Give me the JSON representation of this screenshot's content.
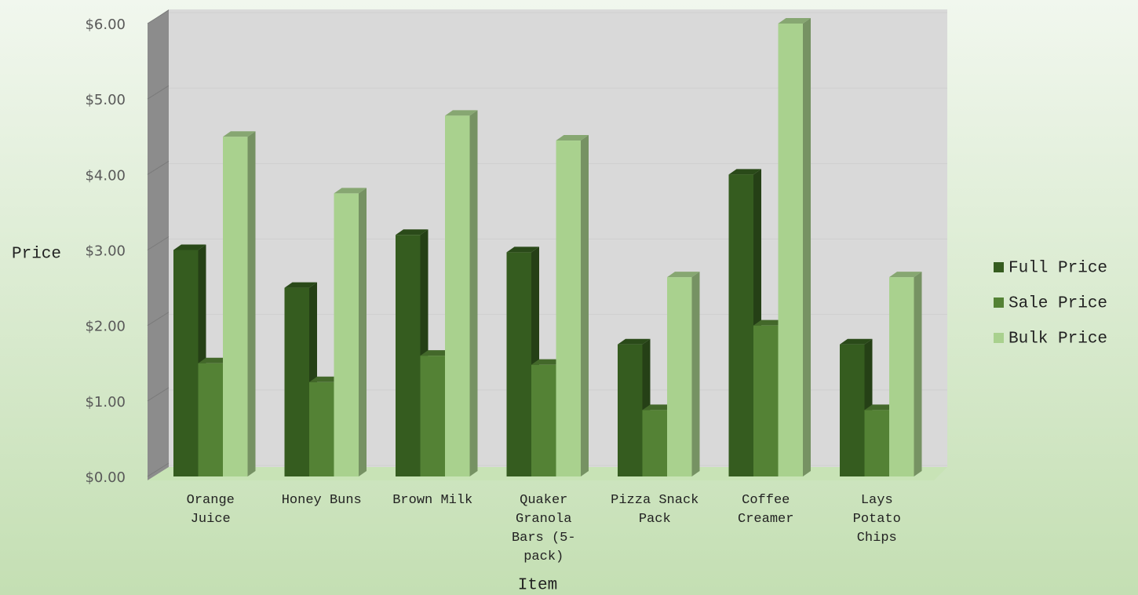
{
  "chart_data": {
    "type": "bar3d",
    "x_label": "Item",
    "y_label": "Price",
    "categories": [
      "Orange Juice",
      "Honey Buns",
      "Brown Milk",
      "Quaker Granola Bars (5-pack)",
      "Pizza Snack Pack",
      "Coffee Creamer",
      "Lays Potato Chips"
    ],
    "series": [
      {
        "name": "Full Price",
        "color": "#355c1f",
        "values": [
          3.0,
          2.5,
          3.2,
          2.97,
          1.75,
          4.0,
          1.75
        ]
      },
      {
        "name": "Sale Price",
        "color": "#548235",
        "values": [
          1.5,
          1.25,
          1.6,
          1.48,
          0.88,
          2.0,
          0.88
        ]
      },
      {
        "name": "Bulk Price",
        "color": "#a9d18e",
        "values": [
          4.5,
          3.75,
          4.78,
          4.45,
          2.64,
          6.0,
          2.64
        ]
      }
    ],
    "ylim": [
      0,
      6
    ],
    "yticks": [
      {
        "value": 0,
        "label": "$0.00"
      },
      {
        "value": 1,
        "label": "$1.00"
      },
      {
        "value": 2,
        "label": "$2.00"
      },
      {
        "value": 3,
        "label": "$3.00"
      },
      {
        "value": 4,
        "label": "$4.00"
      },
      {
        "value": 5,
        "label": "$5.00"
      },
      {
        "value": 6,
        "label": "$6.00"
      }
    ],
    "grid": true,
    "legend": "right"
  }
}
